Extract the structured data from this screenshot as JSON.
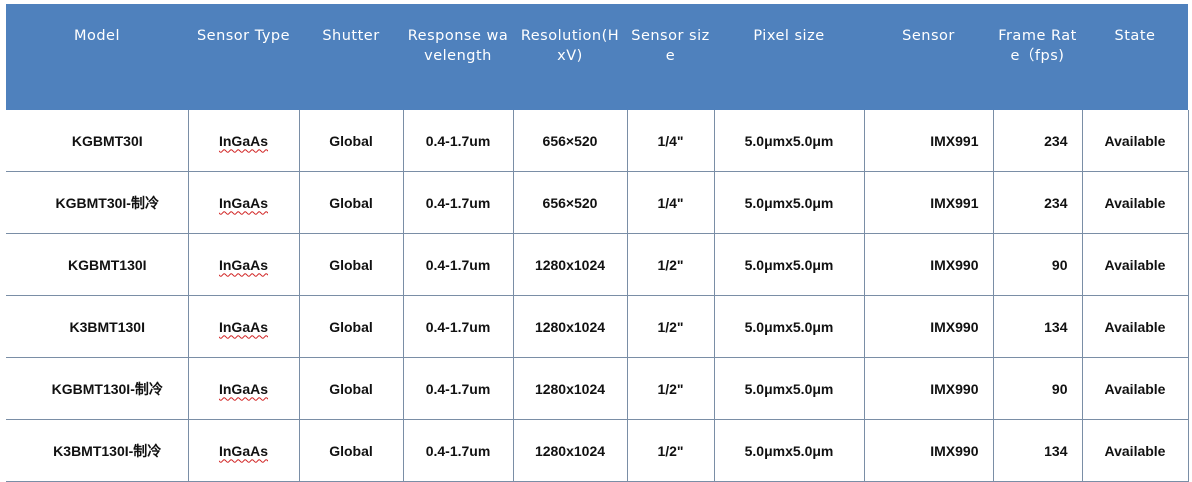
{
  "headers": [
    "Model",
    "Sensor Type",
    "Shutter",
    "Response wavelength",
    "Resolution(HxV)",
    "Sensor size",
    "Pixel size",
    "Sensor",
    "Frame Rate（fps)",
    "State"
  ],
  "rows": [
    [
      "KGBMT30I",
      "InGaAs",
      "Global",
      "0.4-1.7um",
      "656×520",
      "1/4\"",
      "5.0μmx5.0μm",
      "IMX991",
      "234",
      "Available"
    ],
    [
      "KGBMT30I-制冷",
      "InGaAs",
      "Global",
      "0.4-1.7um",
      "656×520",
      "1/4\"",
      "5.0μmx5.0μm",
      "IMX991",
      "234",
      "Available"
    ],
    [
      "KGBMT130I",
      "InGaAs",
      "Global",
      "0.4-1.7um",
      "1280x1024",
      "1/2\"",
      "5.0μmx5.0μm",
      "IMX990",
      "90",
      "Available"
    ],
    [
      "K3BMT130I",
      "InGaAs",
      "Global",
      "0.4-1.7um",
      "1280x1024",
      "1/2\"",
      "5.0μmx5.0μm",
      "IMX990",
      "134",
      "Available"
    ],
    [
      "KGBMT130I-制冷",
      "InGaAs",
      "Global",
      "0.4-1.7um",
      "1280x1024",
      "1/2\"",
      "5.0μmx5.0μm",
      "IMX990",
      "90",
      "Available"
    ],
    [
      "K3BMT130I-制冷",
      "InGaAs",
      "Global",
      "0.4-1.7um",
      "1280x1024",
      "1/2\"",
      "5.0μmx5.0μm",
      "IMX990",
      "134",
      "Available"
    ]
  ],
  "colors": {
    "header_bg": "#4f81bd",
    "header_text": "#ffffff",
    "border": "#7a8ea6"
  }
}
